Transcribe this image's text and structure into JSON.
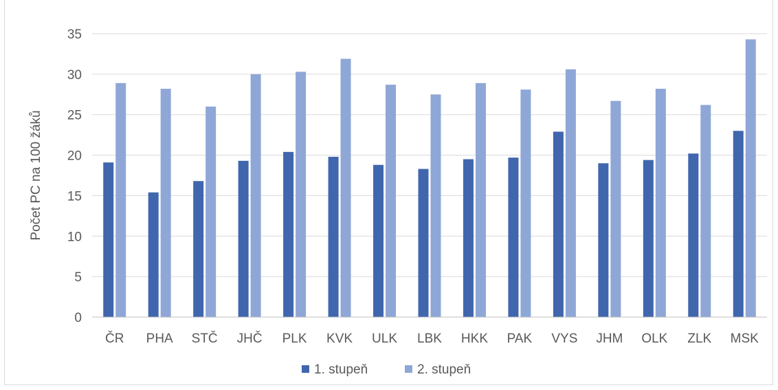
{
  "chart_data": {
    "type": "bar",
    "title": "",
    "xlabel": "",
    "ylabel": "Počet PC na 100 žáků",
    "ylim": [
      0,
      35
    ],
    "yticks": [
      0,
      5,
      10,
      15,
      20,
      25,
      30,
      35
    ],
    "grid": true,
    "legend_position": "bottom",
    "categories": [
      "ČR",
      "PHA",
      "STČ",
      "JHČ",
      "PLK",
      "KVK",
      "ULK",
      "LBK",
      "HKK",
      "PAK",
      "VYS",
      "JHM",
      "OLK",
      "ZLK",
      "MSK"
    ],
    "series": [
      {
        "name": "1. stupeň",
        "color": "#4066ad",
        "values": [
          19.1,
          15.4,
          16.8,
          19.3,
          20.4,
          19.8,
          18.8,
          18.3,
          19.5,
          19.7,
          22.9,
          19.0,
          19.4,
          20.2,
          23.0
        ]
      },
      {
        "name": "2. stupeň",
        "color": "#8fa7d6",
        "values": [
          28.9,
          28.2,
          26.0,
          30.0,
          30.3,
          31.9,
          28.7,
          27.5,
          28.9,
          28.1,
          30.6,
          26.7,
          28.2,
          26.2,
          34.3
        ]
      }
    ],
    "gridline_color": "#d9d9d9",
    "axis_color": "#bfbfbf"
  }
}
